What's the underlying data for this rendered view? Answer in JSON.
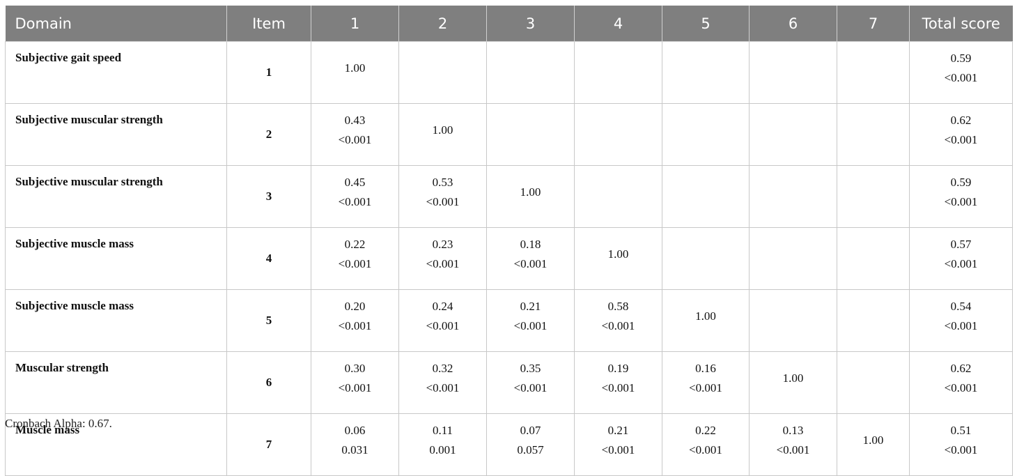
{
  "table": {
    "headers": [
      "Domain",
      "Item",
      "1",
      "2",
      "3",
      "4",
      "5",
      "6",
      "7",
      "Total score"
    ],
    "rows": [
      {
        "domain": "Subjective gait speed",
        "item": "1",
        "cells": [
          [
            "1.00"
          ],
          [],
          [],
          [],
          [],
          [],
          [],
          [
            "0.59",
            "<0.001"
          ]
        ]
      },
      {
        "domain": "Subjective muscular strength",
        "item": "2",
        "cells": [
          [
            "0.43",
            "<0.001"
          ],
          [
            "1.00"
          ],
          [],
          [],
          [],
          [],
          [],
          [
            "0.62",
            "<0.001"
          ]
        ]
      },
      {
        "domain": "Subjective muscular strength",
        "item": "3",
        "cells": [
          [
            "0.45",
            "<0.001"
          ],
          [
            "0.53",
            "<0.001"
          ],
          [
            "1.00"
          ],
          [],
          [],
          [],
          [],
          [
            "0.59",
            "<0.001"
          ]
        ]
      },
      {
        "domain": "Subjective muscle mass",
        "item": "4",
        "cells": [
          [
            "0.22",
            "<0.001"
          ],
          [
            "0.23",
            "<0.001"
          ],
          [
            "0.18",
            "<0.001"
          ],
          [
            "1.00"
          ],
          [],
          [],
          [],
          [
            "0.57",
            "<0.001"
          ]
        ]
      },
      {
        "domain": "Subjective muscle mass",
        "item": "5",
        "cells": [
          [
            "0.20",
            "<0.001"
          ],
          [
            "0.24",
            "<0.001"
          ],
          [
            "0.21",
            "<0.001"
          ],
          [
            "0.58",
            "<0.001"
          ],
          [
            "1.00"
          ],
          [],
          [],
          [
            "0.54",
            "<0.001"
          ]
        ]
      },
      {
        "domain": "Muscular strength",
        "item": "6",
        "cells": [
          [
            "0.30",
            "<0.001"
          ],
          [
            "0.32",
            "<0.001"
          ],
          [
            "0.35",
            "<0.001"
          ],
          [
            "0.19",
            "<0.001"
          ],
          [
            "0.16",
            "<0.001"
          ],
          [
            "1.00"
          ],
          [],
          [
            "0.62",
            "<0.001"
          ]
        ]
      },
      {
        "domain": "Muscle mass",
        "item": "7",
        "cells": [
          [
            "0.06",
            "0.031"
          ],
          [
            "0.11",
            "0.001"
          ],
          [
            "0.07",
            "0.057"
          ],
          [
            "0.21",
            "<0.001"
          ],
          [
            "0.22",
            "<0.001"
          ],
          [
            "0.13",
            "<0.001"
          ],
          [
            "1.00"
          ],
          [
            "0.51",
            "<0.001"
          ]
        ]
      }
    ]
  },
  "footnote": "Cronbach Alpha: 0.67."
}
